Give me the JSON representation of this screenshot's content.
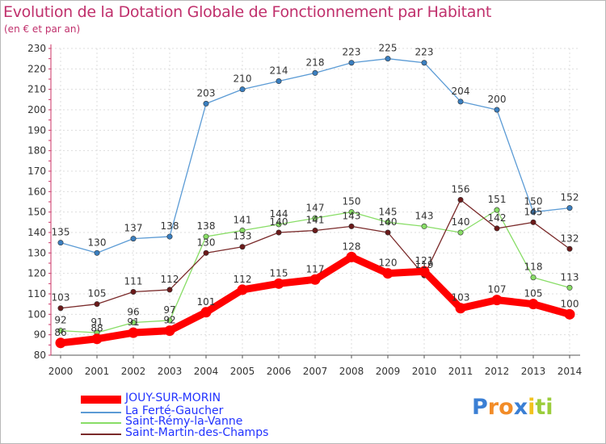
{
  "chart_data": {
    "type": "line",
    "title": "Evolution de la Dotation Globale de Fonctionnement par Habitant",
    "subtitle": "(en € et par an)",
    "xlabel": "",
    "ylabel": "",
    "ylim": [
      80,
      230
    ],
    "y_ticks": [
      "80",
      "90",
      "100",
      "110",
      "120",
      "130",
      "140",
      "150",
      "160",
      "170",
      "180",
      "190",
      "200",
      "210",
      "220",
      "230"
    ],
    "categories": [
      "2000",
      "2001",
      "2002",
      "2003",
      "2004",
      "2005",
      "2006",
      "2007",
      "2008",
      "2009",
      "2010",
      "2011",
      "2012",
      "2013",
      "2014"
    ],
    "grid": true,
    "legend_position": "bottom-left",
    "series": [
      {
        "name": "La Ferté-Gaucher",
        "color": "#5b9bd5",
        "marker_color": "#3a7fc0",
        "values": [
          135,
          130,
          137,
          138,
          203,
          210,
          214,
          218,
          223,
          225,
          223,
          204,
          200,
          150,
          152
        ],
        "labels": [
          "135",
          "130",
          "137",
          "138",
          "203",
          "210",
          "214",
          "218",
          "223",
          "225",
          "223",
          "204",
          "200",
          "150",
          "152"
        ]
      },
      {
        "name": "Saint-Rémy-la-Vanne",
        "color": "#88dd66",
        "marker_color": "#88dd66",
        "values": [
          92,
          91,
          96,
          97,
          138,
          141,
          144,
          147,
          150,
          145,
          143,
          140,
          151,
          118,
          113
        ],
        "labels": [
          "92",
          "91",
          "96",
          "97",
          "138",
          "141",
          "144",
          "147",
          "150",
          "145",
          "143",
          "140",
          "151",
          "118",
          "113"
        ]
      },
      {
        "name": "Saint-Martin-des-Champs",
        "color": "#7a2a2a",
        "marker_color": "#6b1a1a",
        "values": [
          103,
          105,
          111,
          112,
          130,
          133,
          140,
          141,
          143,
          140,
          119,
          156,
          142,
          145,
          132
        ],
        "labels": [
          "103",
          "105",
          "111",
          "112",
          "130",
          "133",
          "140",
          "141",
          "143",
          "140",
          "119",
          "156",
          "142",
          "145",
          "132"
        ]
      },
      {
        "name": "JOUY-SUR-MORIN",
        "color": "#ff0000",
        "marker_color": "#ff0000",
        "values": [
          86,
          88,
          91,
          92,
          101,
          112,
          115,
          117,
          128,
          120,
          121,
          103,
          107,
          105,
          100
        ],
        "labels": [
          "86",
          "88",
          "91",
          "92",
          "101",
          "112",
          "115",
          "117",
          "128",
          "120",
          "121",
          "103",
          "107",
          "105",
          "100"
        ]
      }
    ]
  },
  "legend": [
    {
      "label": "JOUY-SUR-MORIN",
      "color": "#ff0000",
      "thick": true
    },
    {
      "label": "La Ferté-Gaucher",
      "color": "#5b9bd5",
      "thick": false
    },
    {
      "label": "Saint-Rémy-la-Vanne",
      "color": "#88dd66",
      "thick": false
    },
    {
      "label": "Saint-Martin-des-Champs",
      "color": "#7a2a2a",
      "thick": false
    }
  ],
  "logo": {
    "letters": [
      "P",
      "r",
      "o",
      "x",
      "i",
      "t",
      "i"
    ],
    "colors": [
      "#3b7fd4",
      "#f28c28",
      "#f28c28",
      "#3b7fd4",
      "#f2c21e",
      "#9bcd3b",
      "#9bcd3b"
    ]
  }
}
